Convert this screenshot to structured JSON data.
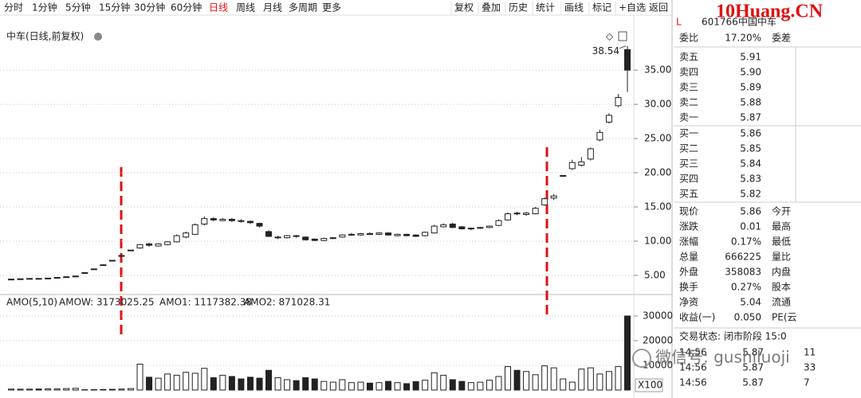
{
  "toolbar": {
    "periods": [
      "分时",
      "1分钟",
      "5分钟",
      "15分钟",
      "30分钟",
      "60分钟",
      "日线",
      "周线",
      "月线",
      "多周期",
      "更多"
    ],
    "active_period": 6,
    "tools": [
      "复权",
      "叠加",
      "历史",
      "统计",
      "画线",
      "标记",
      "+自选",
      "返回"
    ]
  },
  "pane_title": "中车(日线,前复权)",
  "chart_data": [
    {
      "type": "candlestick",
      "open": [
        4.4,
        4.45,
        4.5,
        4.55,
        4.5,
        4.6,
        4.7,
        4.8,
        5.4,
        5.95,
        6.55,
        7.2,
        7.9,
        8.7,
        9.0,
        9.6,
        9.3,
        9.5,
        9.9,
        10.6,
        11.0,
        12.5,
        13.3,
        13.0,
        13.2,
        13.0,
        12.9,
        12.6,
        11.4,
        10.5,
        10.5,
        10.8,
        10.6,
        10.3,
        10.1,
        10.4,
        10.6,
        10.9,
        10.9,
        11.1,
        11.0,
        11.2,
        10.8,
        11.0,
        10.9,
        10.8,
        11.2,
        12.1,
        12.5,
        12.1,
        11.8,
        11.9,
        12.0,
        12.3,
        13.1,
        14.1,
        13.9,
        14.0,
        15.3,
        16.3,
        19.6,
        20.6,
        21.1,
        22.0,
        24.8,
        27.4,
        29.8,
        38.0
      ],
      "high": [
        4.5,
        4.55,
        4.6,
        4.6,
        4.65,
        4.75,
        4.85,
        4.95,
        5.4,
        5.95,
        6.55,
        7.2,
        7.9,
        8.7,
        9.6,
        9.8,
        9.7,
        10.0,
        11.0,
        11.4,
        12.6,
        13.6,
        13.5,
        13.4,
        13.4,
        13.2,
        13.0,
        12.7,
        11.6,
        10.8,
        10.9,
        10.9,
        10.7,
        10.4,
        10.5,
        10.6,
        11.0,
        11.2,
        11.2,
        11.3,
        11.3,
        11.3,
        11.1,
        11.1,
        11.0,
        11.4,
        12.4,
        12.6,
        12.7,
        12.2,
        12.0,
        12.1,
        12.3,
        13.2,
        14.2,
        14.3,
        14.3,
        15.0,
        16.4,
        16.9,
        19.6,
        21.9,
        22.3,
        23.7,
        26.3,
        28.7,
        31.5,
        38.54
      ],
      "low": [
        4.35,
        4.4,
        4.45,
        4.45,
        4.45,
        4.55,
        4.65,
        4.75,
        5.4,
        5.95,
        6.55,
        7.2,
        7.9,
        8.7,
        8.9,
        9.2,
        9.2,
        9.4,
        9.8,
        10.4,
        10.9,
        12.3,
        12.9,
        12.9,
        12.8,
        12.7,
        12.5,
        12.0,
        10.6,
        10.3,
        10.4,
        10.5,
        10.1,
        10.0,
        10.0,
        10.3,
        10.5,
        10.8,
        10.8,
        10.9,
        10.9,
        10.8,
        10.7,
        10.7,
        10.6,
        10.7,
        11.1,
        12.0,
        11.9,
        11.7,
        11.6,
        11.8,
        11.9,
        12.2,
        13.0,
        13.8,
        13.7,
        13.9,
        15.2,
        16.0,
        19.6,
        20.4,
        20.9,
        21.8,
        24.6,
        27.2,
        29.6,
        31.8
      ],
      "close": [
        4.45,
        4.5,
        4.55,
        4.5,
        4.6,
        4.7,
        4.8,
        4.9,
        5.4,
        5.95,
        6.55,
        7.2,
        7.9,
        8.7,
        9.5,
        9.4,
        9.6,
        9.9,
        10.8,
        11.2,
        12.4,
        13.3,
        13.1,
        13.2,
        13.0,
        12.9,
        12.7,
        12.2,
        10.7,
        10.6,
        10.8,
        10.7,
        10.2,
        10.1,
        10.4,
        10.5,
        10.9,
        11.0,
        11.1,
        11.0,
        11.2,
        10.9,
        11.0,
        10.8,
        10.7,
        11.3,
        12.2,
        12.4,
        12.0,
        11.8,
        11.9,
        12.0,
        12.2,
        13.0,
        14.0,
        14.0,
        14.1,
        14.8,
        16.2,
        16.6,
        19.6,
        21.5,
        21.6,
        23.5,
        25.9,
        28.4,
        31.0,
        35.0
      ],
      "high_label": "38.54",
      "color": "#222222",
      "ylim": [
        2.2,
        40.6
      ],
      "yticks": [
        {
          "value": 5,
          "label": "5.00"
        },
        {
          "value": 10,
          "label": "10.00"
        },
        {
          "value": 15,
          "label": "15.00"
        },
        {
          "value": 20,
          "label": "20.00"
        },
        {
          "value": 25,
          "label": "25.00"
        },
        {
          "value": 30,
          "label": "30.00"
        },
        {
          "value": 35,
          "label": "35.00"
        }
      ],
      "grid": true
    },
    {
      "type": "bar",
      "legend": [
        "AMO(5,10)",
        "AMOW: 3173025.25",
        "AMO1: 1117382.38",
        "AMO2: 871028.31"
      ],
      "values": [
        400,
        350,
        380,
        420,
        500,
        450,
        600,
        700,
        150,
        200,
        250,
        300,
        400,
        600,
        10500,
        5200,
        4800,
        6500,
        6000,
        7200,
        6800,
        8800,
        5000,
        6000,
        5500,
        4500,
        5200,
        4800,
        8000,
        5000,
        4200,
        3800,
        5000,
        4500,
        3500,
        3200,
        4200,
        3000,
        3200,
        2800,
        3000,
        3500,
        3000,
        2600,
        3400,
        4000,
        7000,
        6000,
        4200,
        3500,
        3000,
        3200,
        4000,
        5500,
        9500,
        8000,
        7500,
        6200,
        9800,
        9000,
        4500,
        3200,
        8500,
        9000,
        6500,
        7500,
        9500,
        30000
      ],
      "color": "#222222",
      "ylim": [
        0,
        32900
      ],
      "yticks": [
        10000,
        20000,
        30000
      ],
      "unit_label": "X100",
      "grid": true
    }
  ],
  "quote": {
    "code": "601766",
    "name": "中国中车",
    "ratio": [
      "委比",
      "17.20%",
      "委差"
    ],
    "asks": [
      [
        "卖五",
        "5.91"
      ],
      [
        "卖四",
        "5.90"
      ],
      [
        "卖三",
        "5.89"
      ],
      [
        "卖二",
        "5.88"
      ],
      [
        "卖一",
        "5.87"
      ]
    ],
    "bids": [
      [
        "买一",
        "5.86"
      ],
      [
        "买二",
        "5.85"
      ],
      [
        "买三",
        "5.84"
      ],
      [
        "买四",
        "5.83"
      ],
      [
        "买五",
        "5.82"
      ]
    ],
    "stats": [
      [
        "现价",
        "5.86",
        "今开"
      ],
      [
        "涨跌",
        "0.01",
        "最高"
      ],
      [
        "涨幅",
        "0.17%",
        "最低"
      ],
      [
        "总量",
        "666225",
        "量比"
      ],
      [
        "外盘",
        "358083",
        "内盘"
      ],
      [
        "换手",
        "0.27%",
        "股本"
      ],
      [
        "净资",
        "5.04",
        "流通"
      ],
      [
        "收益(一)",
        "0.050",
        "PE(云"
      ]
    ],
    "status": "交易状态: 闭市阶段 15:0",
    "trades": [
      [
        "14:56",
        "5.87",
        "11"
      ],
      [
        "14:56",
        "5.87",
        "33"
      ],
      [
        "14:56",
        "5.87",
        "7"
      ]
    ]
  },
  "watermark": "微信号: gushiluoji",
  "site": "10Huang.CN"
}
